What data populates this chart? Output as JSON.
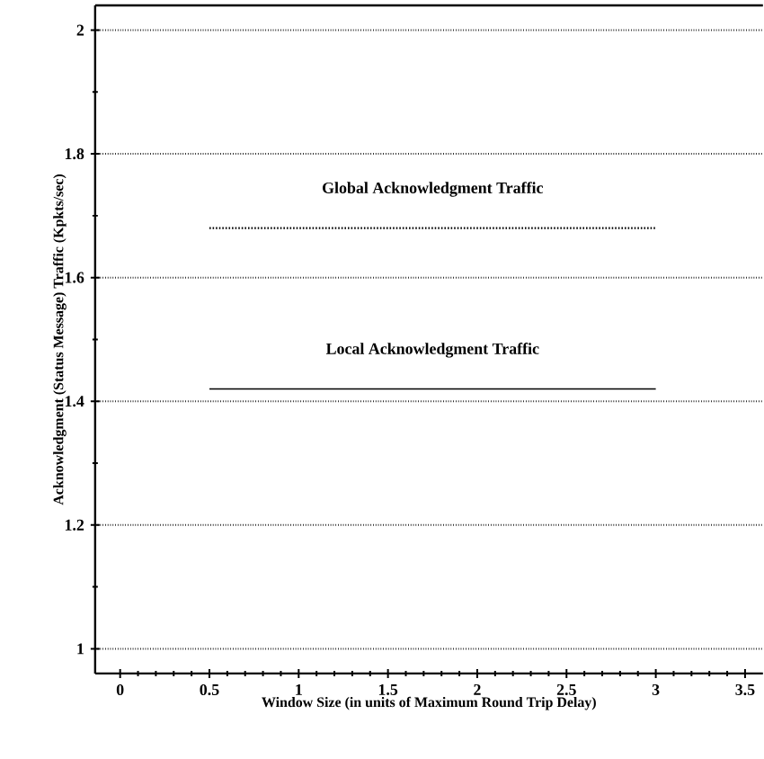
{
  "chart_data": {
    "type": "line",
    "xlabel": "Window Size (in units of Maximum Round Trip Delay)",
    "ylabel": "Acknowledgment (Status Message) Traffic (Kpkts/sec)",
    "xlim": [
      -0.14,
      3.6
    ],
    "ylim": [
      0.96,
      2.04
    ],
    "xticks": [
      0,
      0.5,
      1,
      1.5,
      2,
      2.5,
      3,
      3.5
    ],
    "yticks": [
      1,
      1.2,
      1.4,
      1.6,
      1.8,
      2
    ],
    "grid": "y",
    "x": [
      0.5,
      3.0
    ],
    "series": [
      {
        "values": [
          1.68,
          1.68
        ],
        "color": "#000000",
        "line_style": "dotted"
      },
      {
        "values": [
          1.42,
          1.42
        ],
        "color": "#000000",
        "line_style": "solid"
      }
    ],
    "annotations": [
      "Global Acknowledgment Traffic",
      "Local Acknowledgment Traffic"
    ]
  }
}
